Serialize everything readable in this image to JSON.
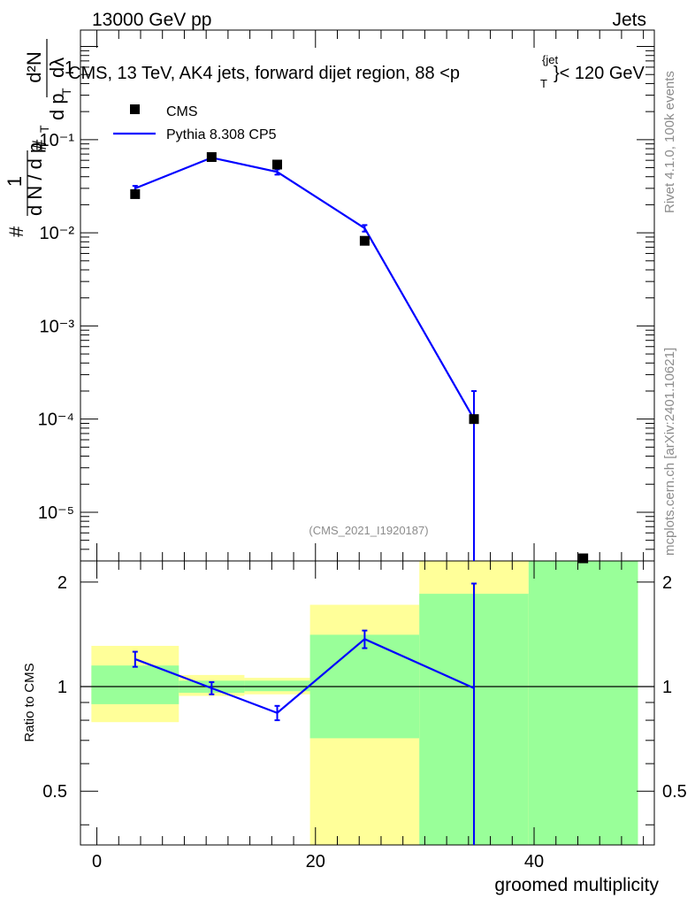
{
  "header": {
    "energy_label": "13000 GeV pp",
    "category_label": "Jets"
  },
  "side_text": {
    "rivet": "Rivet 4.1.0,  100k events",
    "site": "mcplots.cern.ch [arXiv:2401.10621]"
  },
  "chart_data": [
    {
      "type": "scatter",
      "panel": "main",
      "title": "CMS, 13 TeV, AK4 jets, forward dijet region, 88 <p_T^{jet}< 120 GeV",
      "title_parts": {
        "main": "CMS, 13 TeV, AK4 jets, forward dijet region, 88 <p",
        "sup": "{jet",
        "sub": "T",
        "tail": "}< 120 GeV"
      },
      "ylabel_parts": {
        "num": "1",
        "hash_left": "#",
        "den": "d N / d p",
        "den_sub": "T",
        "hash_mid": "#",
        "ratio_num": "d²N",
        "ratio_den": "d p",
        "ratio_den_sub": "T",
        "ratio_den_tail": "dλ"
      },
      "xlim": [
        -1.5,
        51
      ],
      "ylim": [
        3e-06,
        1.5
      ],
      "yscale": "log",
      "ytick_labels": [
        "10⁻¹",
        "10⁻²",
        "10⁻³",
        "10⁻⁴",
        "10⁻⁵"
      ],
      "ytick_values": [
        0.1,
        0.01,
        0.001,
        0.0001,
        1e-05
      ],
      "top_tick_label": "1",
      "watermark": "(CMS_2021_I1920187)",
      "legend": [
        "CMS",
        "Pythia 8.308 CP5"
      ],
      "legend_position": "top-left",
      "series": [
        {
          "name": "CMS",
          "marker": "square",
          "color": "#000000",
          "x": [
            3.5,
            10.5,
            16.5,
            24.5,
            34.5,
            44.5
          ],
          "y": [
            0.026,
            0.065,
            0.054,
            0.0082,
            0.0001,
            3.2e-06
          ]
        },
        {
          "name": "Pythia 8.308 CP5",
          "marker": "line",
          "color": "#0000ff",
          "x": [
            3.5,
            10.5,
            16.5,
            24.5,
            34.5
          ],
          "y": [
            0.03,
            0.064,
            0.045,
            0.0112,
            0.0001
          ],
          "err_low": [
            0.0019,
            0.002,
            0.0029,
            0.0009,
            0.0001
          ],
          "err_high": [
            0.0019,
            0.002,
            0.0029,
            0.0009,
            0.0001
          ]
        }
      ]
    },
    {
      "type": "line",
      "panel": "ratio",
      "ylabel": "Ratio to CMS",
      "xlabel": "groomed multiplicity",
      "xlim": [
        -1.5,
        51
      ],
      "ylim": [
        0.35,
        2.3
      ],
      "yscale": "log",
      "ytick_labels": [
        "2",
        "1",
        "0.5"
      ],
      "ytick_values": [
        2,
        1,
        0.5
      ],
      "xtick_labels": [
        "0",
        "20",
        "40"
      ],
      "xtick_values": [
        0,
        20,
        40
      ],
      "reference_line": 1,
      "bands": [
        {
          "x0": -0.5,
          "x1": 7.5,
          "yellow": [
            0.79,
            1.31
          ],
          "green": [
            0.89,
            1.15
          ]
        },
        {
          "x0": 7.5,
          "x1": 13.5,
          "yellow": [
            0.94,
            1.08
          ],
          "green": [
            0.96,
            1.04
          ]
        },
        {
          "x0": 13.5,
          "x1": 19.5,
          "yellow": [
            0.95,
            1.06
          ],
          "green": [
            0.97,
            1.04
          ]
        },
        {
          "x0": 19.5,
          "x1": 29.5,
          "yellow": [
            0.1,
            1.72
          ],
          "green": [
            0.71,
            1.41
          ]
        },
        {
          "x0": 29.5,
          "x1": 39.5,
          "yellow": [
            0.1,
            2.3
          ],
          "green": [
            0.1,
            1.85
          ]
        },
        {
          "x0": 39.5,
          "x1": 49.5,
          "yellow": [
            0.1,
            2.3
          ],
          "green": [
            0.1,
            2.3
          ]
        }
      ],
      "series": [
        {
          "name": "Pythia 8.308 CP5",
          "color": "#0000ff",
          "x": [
            3.5,
            10.5,
            16.5,
            24.5,
            34.5
          ],
          "y": [
            1.2,
            0.99,
            0.84,
            1.37,
            0.99
          ],
          "err_low": [
            0.06,
            0.04,
            0.04,
            0.08,
            0.7
          ],
          "err_high": [
            0.06,
            0.04,
            0.04,
            0.08,
            0.99
          ]
        }
      ]
    }
  ]
}
